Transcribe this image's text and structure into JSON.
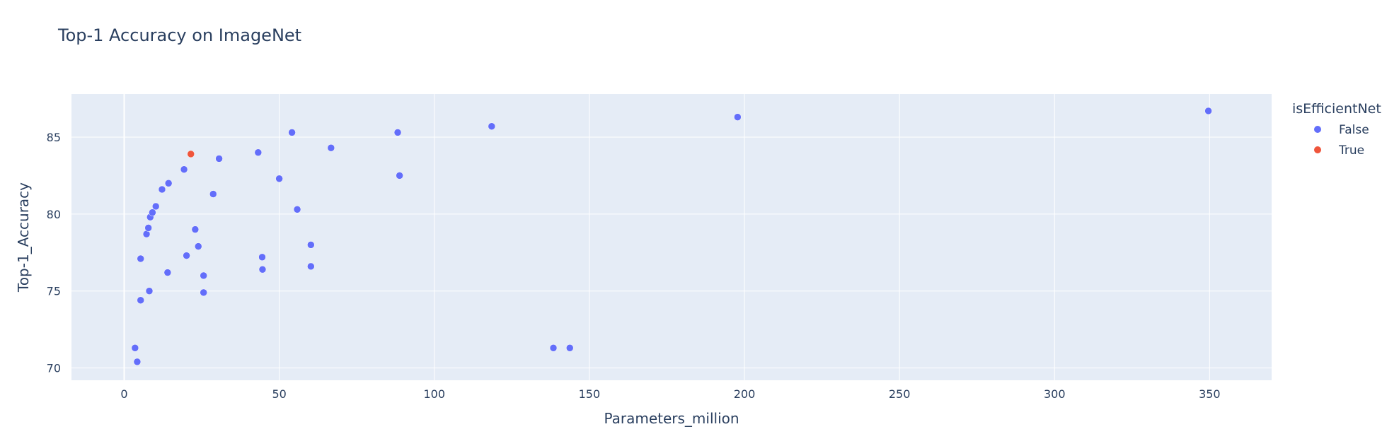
{
  "colors": {
    "plot_background": "#E5ECF6",
    "grid": "#ffffff",
    "text": "#2a3f5f",
    "false_series": "#636EFA",
    "true_series": "#EF553B"
  },
  "chart_data": {
    "type": "scatter",
    "title": "Top-1 Accuracy on ImageNet",
    "xlabel": "Parameters_million",
    "ylabel": "Top-1_Accuracy",
    "xlim": [
      -17,
      370
    ],
    "ylim": [
      69.2,
      87.8
    ],
    "xticks": [
      0,
      50,
      100,
      150,
      200,
      250,
      300,
      350
    ],
    "yticks": [
      70,
      75,
      80,
      85
    ],
    "grid": true,
    "legend": {
      "title": "isEfficientNet",
      "placement": "right"
    },
    "series": [
      {
        "name": "False",
        "color": "#636EFA",
        "points": [
          [
            3.5,
            71.3
          ],
          [
            4.2,
            70.4
          ],
          [
            5.3,
            74.4
          ],
          [
            5.3,
            77.1
          ],
          [
            7.2,
            78.7
          ],
          [
            7.8,
            79.1
          ],
          [
            8.4,
            79.8
          ],
          [
            8.1,
            75.0
          ],
          [
            9.1,
            80.1
          ],
          [
            10.2,
            80.5
          ],
          [
            12.2,
            81.6
          ],
          [
            14.3,
            82.0
          ],
          [
            14.0,
            76.2
          ],
          [
            19.3,
            82.9
          ],
          [
            20.1,
            77.3
          ],
          [
            22.9,
            79.0
          ],
          [
            23.9,
            77.9
          ],
          [
            25.6,
            76.0
          ],
          [
            25.6,
            74.9
          ],
          [
            28.7,
            81.3
          ],
          [
            30.6,
            83.6
          ],
          [
            43.2,
            84.0
          ],
          [
            44.5,
            77.2
          ],
          [
            44.6,
            76.4
          ],
          [
            50.0,
            82.3
          ],
          [
            54.1,
            85.3
          ],
          [
            55.8,
            80.3
          ],
          [
            60.2,
            78.0
          ],
          [
            60.2,
            76.6
          ],
          [
            66.7,
            84.3
          ],
          [
            88.2,
            85.3
          ],
          [
            88.8,
            82.5
          ],
          [
            118.5,
            85.7
          ],
          [
            138.4,
            71.3
          ],
          [
            143.7,
            71.3
          ],
          [
            197.8,
            86.3
          ],
          [
            349.6,
            86.7
          ]
        ]
      },
      {
        "name": "True",
        "color": "#EF553B",
        "points": [
          [
            21.5,
            83.9
          ]
        ]
      }
    ]
  }
}
